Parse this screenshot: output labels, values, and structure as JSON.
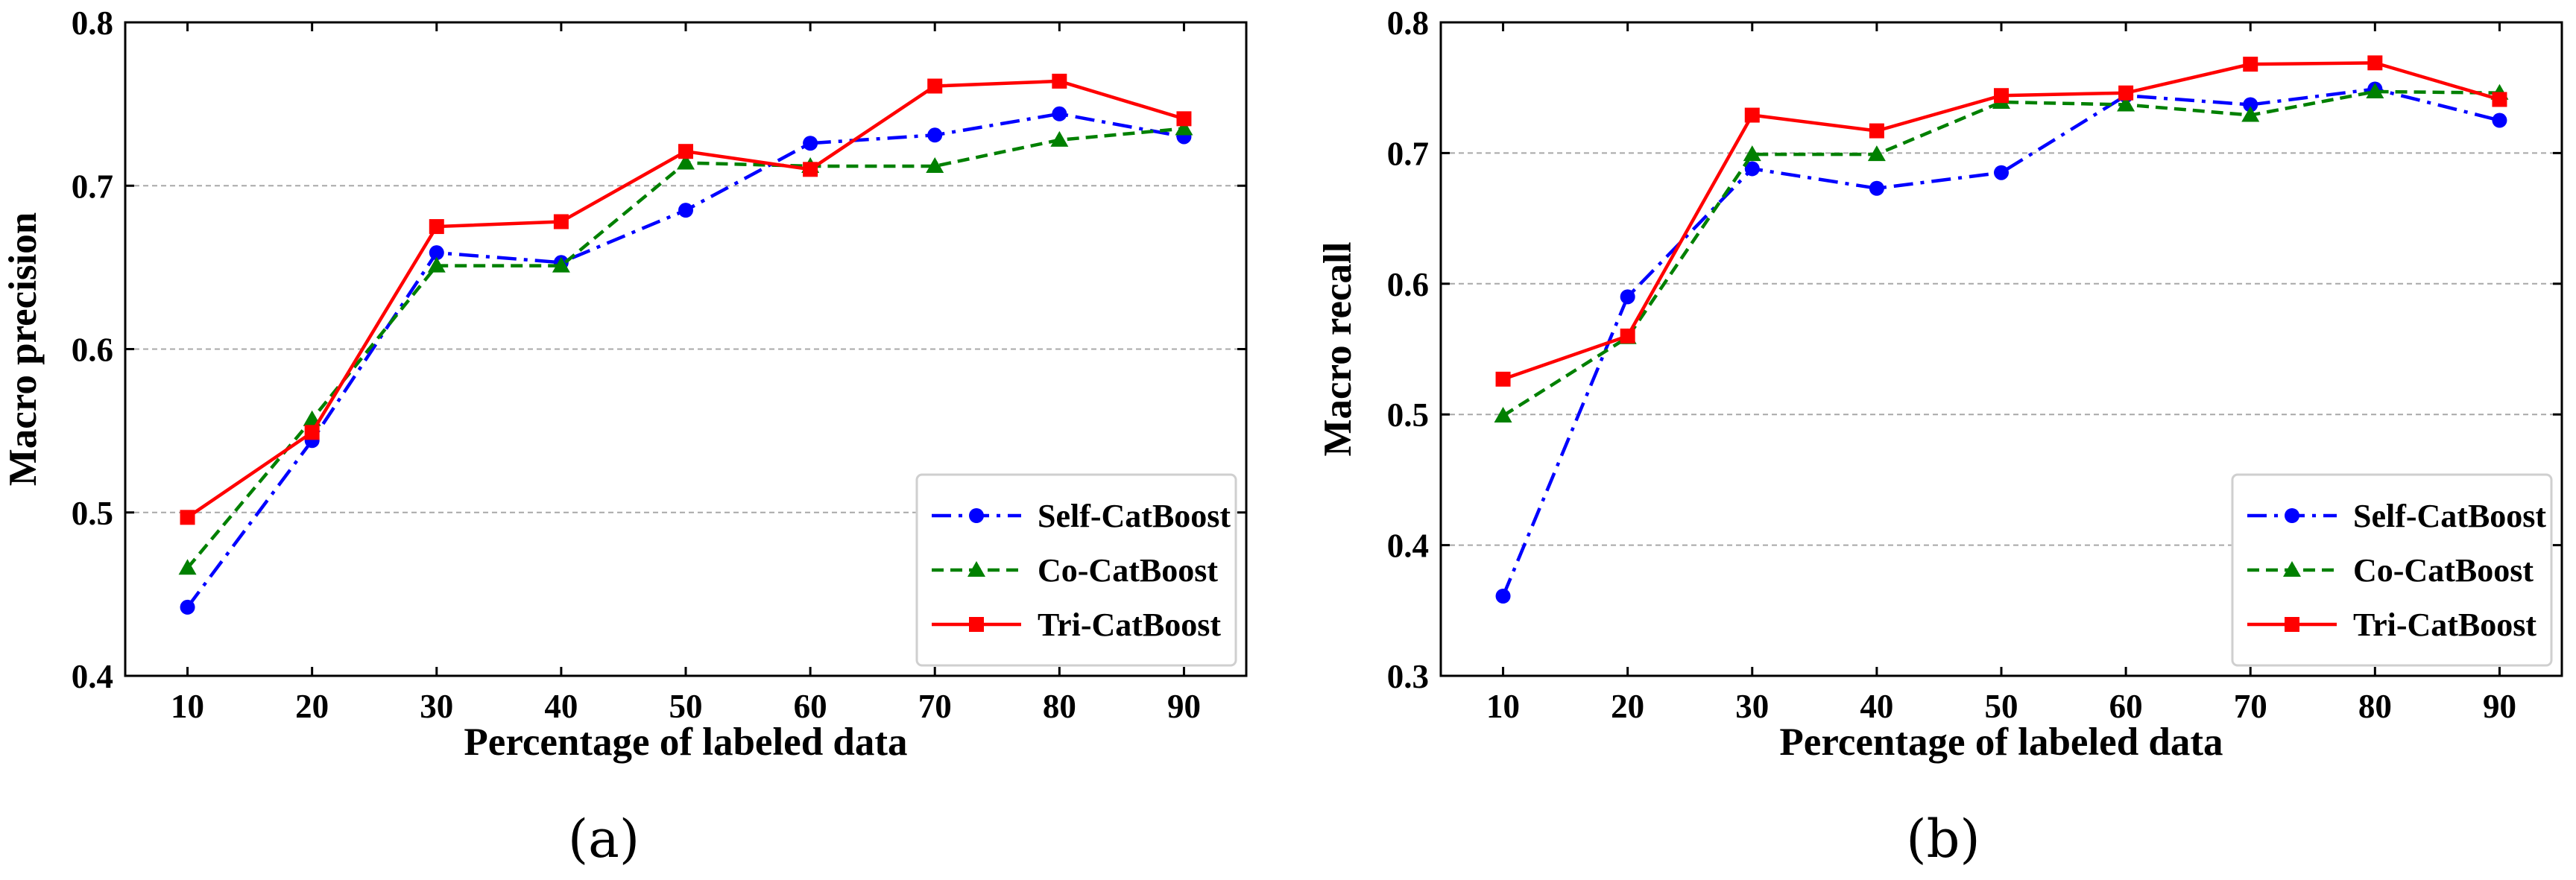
{
  "chart_data": [
    {
      "type": "line",
      "caption": "(a)",
      "xlabel": "Percentage of labeled data",
      "ylabel": "Macro precision",
      "x": [
        10,
        20,
        30,
        40,
        50,
        60,
        70,
        80,
        90
      ],
      "xlim": [
        5,
        95
      ],
      "ylim": [
        0.4,
        0.8
      ],
      "yticks": [
        "0.4",
        "0.5",
        "0.6",
        "0.7",
        "0.8"
      ],
      "grid": "horizontal dashed",
      "legend": "bottom-right",
      "series": [
        {
          "name": "Self-CatBoost",
          "color": "#0000ff",
          "style": "dash-dot",
          "marker": "circle",
          "values": [
            0.442,
            0.544,
            0.659,
            0.653,
            0.685,
            0.726,
            0.731,
            0.744,
            0.73
          ]
        },
        {
          "name": "Co-CatBoost",
          "color": "#008000",
          "style": "dashed",
          "marker": "triangle",
          "values": [
            0.466,
            0.557,
            0.651,
            0.651,
            0.714,
            0.712,
            0.712,
            0.728,
            0.735
          ]
        },
        {
          "name": "Tri-CatBoost",
          "color": "#ff0000",
          "style": "solid",
          "marker": "square",
          "values": [
            0.497,
            0.549,
            0.675,
            0.678,
            0.721,
            0.71,
            0.761,
            0.764,
            0.741
          ]
        }
      ]
    },
    {
      "type": "line",
      "caption": "(b)",
      "xlabel": "Percentage of labeled data",
      "ylabel": "Macro recall",
      "x": [
        10,
        20,
        30,
        40,
        50,
        60,
        70,
        80,
        90
      ],
      "xlim": [
        5,
        95
      ],
      "ylim": [
        0.3,
        0.8
      ],
      "yticks": [
        "0.3",
        "0.4",
        "0.5",
        "0.6",
        "0.7",
        "0.8"
      ],
      "grid": "horizontal dashed",
      "legend": "bottom-right",
      "series": [
        {
          "name": "Self-CatBoost",
          "color": "#0000ff",
          "style": "dash-dot",
          "marker": "circle",
          "values": [
            0.361,
            0.59,
            0.688,
            0.673,
            0.685,
            0.744,
            0.737,
            0.749,
            0.725
          ]
        },
        {
          "name": "Co-CatBoost",
          "color": "#008000",
          "style": "dashed",
          "marker": "triangle",
          "values": [
            0.499,
            0.559,
            0.699,
            0.699,
            0.739,
            0.737,
            0.729,
            0.747,
            0.746
          ]
        },
        {
          "name": "Tri-CatBoost",
          "color": "#ff0000",
          "style": "solid",
          "marker": "square",
          "values": [
            0.527,
            0.56,
            0.729,
            0.717,
            0.744,
            0.746,
            0.768,
            0.769,
            0.741
          ]
        }
      ]
    }
  ]
}
